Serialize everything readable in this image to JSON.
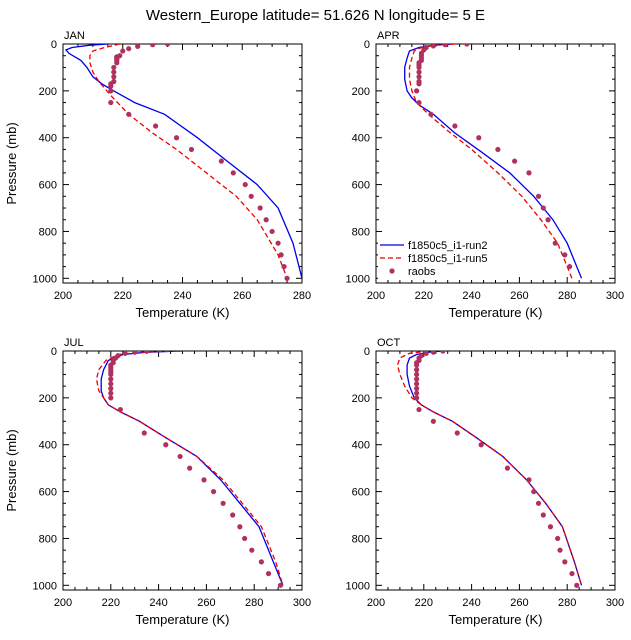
{
  "figure": {
    "title": "Western_Europe  latitude= 51.626 N longitude= 5 E"
  },
  "colors": {
    "run2": "#0000ee",
    "run5": "#ee0000",
    "raobs": "#b03060",
    "axis": "#000000"
  },
  "legend": {
    "placement": "inside APR panel, lower-left",
    "entries": [
      {
        "label": "f1850c5_i1-run2",
        "style": "solid",
        "color": "#0000ee"
      },
      {
        "label": "f1850c5_i1-run5",
        "style": "dashed",
        "color": "#ee0000"
      },
      {
        "label": "raobs",
        "style": "dots",
        "color": "#b03060"
      }
    ]
  },
  "chart_data": [
    {
      "type": "line",
      "title": "JAN",
      "xlabel": "Temperature (K)",
      "ylabel": "Pressure (mb)",
      "xlim": [
        200,
        280
      ],
      "ylim": [
        1020,
        0
      ],
      "xticks": [
        "200",
        "220",
        "240",
        "260",
        "280"
      ],
      "yticks": [
        "0",
        "200",
        "400",
        "600",
        "800",
        "1000"
      ],
      "series": [
        {
          "name": "f1850c5_i1-run2",
          "style": "solid",
          "color": "#0000ee",
          "x": [
            215,
            209,
            203,
            201,
            202,
            206,
            208,
            210,
            213,
            217,
            224,
            234,
            245,
            255,
            265,
            272,
            277,
            280
          ],
          "y": [
            0,
            5,
            15,
            25,
            40,
            70,
            100,
            140,
            170,
            200,
            250,
            300,
            400,
            500,
            600,
            700,
            850,
            1000
          ]
        },
        {
          "name": "f1850c5_i1-run5",
          "style": "dashed",
          "color": "#ee0000",
          "x": [
            219,
            214,
            210,
            209,
            209,
            210,
            212,
            214,
            216,
            222,
            230,
            238,
            248,
            258,
            265,
            272,
            275
          ],
          "y": [
            0,
            15,
            30,
            50,
            80,
            120,
            160,
            190,
            220,
            300,
            380,
            450,
            550,
            650,
            750,
            900,
            1000
          ]
        },
        {
          "name": "raobs",
          "style": "dots",
          "color": "#b03060",
          "x": [
            235,
            230,
            225,
            222,
            220,
            219,
            218,
            218,
            218,
            218,
            218,
            217,
            217,
            217,
            217,
            216,
            216,
            216,
            216,
            222,
            231,
            238,
            243,
            253,
            257,
            261,
            263,
            266,
            268,
            270,
            272,
            273,
            274,
            275
          ],
          "y": [
            0,
            3,
            10,
            20,
            30,
            50,
            55,
            60,
            65,
            70,
            80,
            100,
            120,
            140,
            160,
            170,
            180,
            200,
            250,
            300,
            350,
            400,
            450,
            500,
            550,
            600,
            650,
            700,
            750,
            800,
            850,
            900,
            950,
            1000
          ]
        }
      ]
    },
    {
      "type": "line",
      "title": "APR",
      "xlabel": "Temperature (K)",
      "ylabel": "",
      "xlim": [
        200,
        300
      ],
      "ylim": [
        1020,
        0
      ],
      "xticks": [
        "200",
        "220",
        "240",
        "260",
        "280",
        "300"
      ],
      "yticks": [
        "0",
        "200",
        "400",
        "600",
        "800",
        "1000"
      ],
      "series": [
        {
          "name": "f1850c5_i1-run2",
          "style": "solid",
          "color": "#0000ee",
          "x": [
            232,
            224,
            218,
            214,
            213,
            212,
            212,
            213,
            215,
            218,
            224,
            233,
            244,
            256,
            266,
            274,
            280,
            286
          ],
          "y": [
            0,
            5,
            15,
            30,
            60,
            100,
            150,
            200,
            230,
            260,
            300,
            380,
            460,
            550,
            650,
            750,
            850,
            1000
          ]
        },
        {
          "name": "f1850c5_i1-run5",
          "style": "dashed",
          "color": "#ee0000",
          "x": [
            233,
            225,
            219,
            216,
            215,
            214,
            214,
            215,
            217,
            222,
            230,
            240,
            251,
            261,
            269,
            276,
            282
          ],
          "y": [
            0,
            5,
            15,
            30,
            60,
            100,
            150,
            200,
            250,
            300,
            370,
            450,
            550,
            650,
            750,
            850,
            1000
          ]
        },
        {
          "name": "raobs",
          "style": "dots",
          "color": "#b03060",
          "x": [
            238,
            229,
            224,
            221,
            220,
            219,
            219,
            219,
            219,
            218,
            218,
            218,
            218,
            218,
            218,
            218,
            217,
            218,
            223,
            233,
            243,
            251,
            258,
            264,
            268,
            270,
            272,
            275,
            279,
            281
          ],
          "y": [
            0,
            3,
            8,
            15,
            25,
            40,
            50,
            60,
            70,
            80,
            90,
            100,
            120,
            140,
            160,
            170,
            200,
            250,
            300,
            350,
            400,
            450,
            500,
            550,
            650,
            700,
            750,
            850,
            900,
            950
          ]
        }
      ]
    },
    {
      "type": "line",
      "title": "JUL",
      "xlabel": "Temperature (K)",
      "ylabel": "Pressure (mb)",
      "xlim": [
        200,
        300
      ],
      "ylim": [
        1020,
        0
      ],
      "xticks": [
        "200",
        "220",
        "240",
        "260",
        "280",
        "300"
      ],
      "yticks": [
        "0",
        "200",
        "400",
        "600",
        "800",
        "1000"
      ],
      "series": [
        {
          "name": "f1850c5_i1-run2",
          "style": "solid",
          "color": "#0000ee",
          "x": [
            250,
            235,
            225,
            219,
            217,
            216,
            216,
            217,
            219,
            224,
            232,
            243,
            256,
            266,
            274,
            282,
            288,
            292
          ],
          "y": [
            0,
            5,
            15,
            40,
            80,
            120,
            170,
            200,
            230,
            260,
            300,
            370,
            450,
            550,
            650,
            750,
            900,
            1000
          ]
        },
        {
          "name": "f1850c5_i1-run5",
          "style": "dashed",
          "color": "#ee0000",
          "x": [
            248,
            233,
            223,
            218,
            215,
            214,
            215,
            217,
            219,
            224,
            232,
            243,
            256,
            267,
            275,
            283,
            289,
            292
          ],
          "y": [
            0,
            5,
            15,
            40,
            80,
            120,
            170,
            200,
            230,
            260,
            300,
            370,
            450,
            550,
            650,
            750,
            900,
            1000
          ]
        },
        {
          "name": "raobs",
          "style": "dots",
          "color": "#b03060",
          "x": [
            235,
            230,
            226,
            223,
            222,
            221,
            221,
            220,
            220,
            220,
            220,
            220,
            220,
            220,
            220,
            220,
            220,
            224,
            234,
            243,
            249,
            253,
            259,
            263,
            267,
            271,
            274,
            276,
            279,
            283,
            286,
            291
          ],
          "y": [
            0,
            5,
            10,
            20,
            30,
            40,
            50,
            60,
            70,
            80,
            90,
            100,
            120,
            140,
            160,
            180,
            200,
            250,
            350,
            400,
            450,
            500,
            550,
            600,
            650,
            700,
            750,
            800,
            850,
            900,
            950,
            1000
          ]
        }
      ]
    },
    {
      "type": "line",
      "title": "OCT",
      "xlabel": "Temperature (K)",
      "ylabel": "",
      "xlim": [
        200,
        300
      ],
      "ylim": [
        1020,
        0
      ],
      "xticks": [
        "200",
        "220",
        "240",
        "260",
        "280",
        "300"
      ],
      "yticks": [
        "0",
        "200",
        "400",
        "600",
        "800",
        "1000"
      ],
      "series": [
        {
          "name": "f1850c5_i1-run2",
          "style": "solid",
          "color": "#0000ee",
          "x": [
            228,
            222,
            217,
            214,
            213,
            213,
            214,
            216,
            219,
            224,
            232,
            242,
            253,
            263,
            271,
            278,
            283,
            286
          ],
          "y": [
            0,
            5,
            15,
            30,
            60,
            100,
            150,
            200,
            230,
            260,
            300,
            370,
            450,
            550,
            650,
            750,
            900,
            1000
          ]
        },
        {
          "name": "f1850c5_i1-run5",
          "style": "dashed",
          "color": "#ee0000",
          "x": [
            222,
            214,
            210,
            209,
            210,
            212,
            215,
            219,
            224,
            232,
            242,
            253,
            263,
            271,
            278,
            283,
            286
          ],
          "y": [
            0,
            10,
            30,
            60,
            100,
            150,
            200,
            230,
            260,
            300,
            370,
            450,
            550,
            650,
            750,
            900,
            1000
          ]
        },
        {
          "name": "raobs",
          "style": "dots",
          "color": "#b03060",
          "x": [
            228,
            224,
            221,
            219,
            218,
            218,
            217,
            217,
            217,
            217,
            217,
            217,
            217,
            217,
            217,
            218,
            224,
            234,
            244,
            255,
            264,
            266,
            268,
            270,
            273,
            276,
            277,
            279,
            282,
            284
          ],
          "y": [
            0,
            5,
            10,
            20,
            30,
            40,
            50,
            60,
            80,
            100,
            120,
            140,
            160,
            180,
            200,
            250,
            300,
            350,
            400,
            500,
            550,
            600,
            650,
            700,
            750,
            800,
            850,
            900,
            950,
            1000
          ]
        }
      ]
    }
  ]
}
